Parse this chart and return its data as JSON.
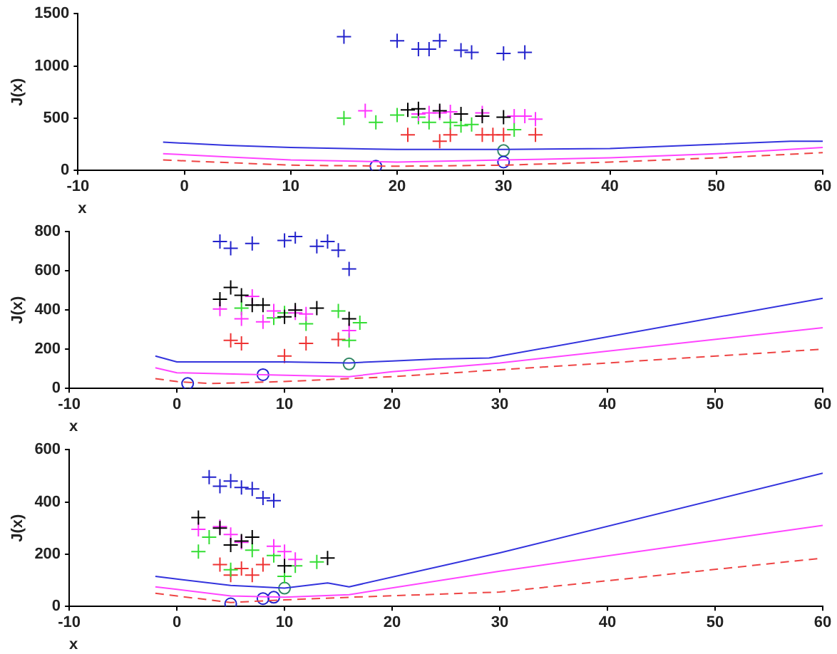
{
  "chart_data": [
    {
      "type": "scatter",
      "xlabel": "x",
      "ylabel": "J(x)",
      "xlim": [
        -10,
        60
      ],
      "xticks": [
        -10,
        0,
        10,
        20,
        30,
        40,
        50,
        60
      ],
      "ylim": [
        0,
        1500
      ],
      "yticks": [
        0,
        500,
        1000,
        1500
      ],
      "series": [
        {
          "type": "line",
          "color": "#3333dd",
          "marker": "none",
          "line_style": "solid",
          "x": [
            -2,
            4,
            10,
            20,
            23,
            30,
            40,
            50,
            57,
            60
          ],
          "values": [
            270,
            240,
            220,
            200,
            200,
            200,
            210,
            250,
            280,
            280
          ]
        },
        {
          "type": "line",
          "color": "#ff44ff",
          "marker": "none",
          "line_style": "solid",
          "x": [
            -2,
            4,
            10,
            20,
            30,
            40,
            50,
            60
          ],
          "values": [
            160,
            130,
            100,
            80,
            100,
            120,
            160,
            220
          ]
        },
        {
          "type": "line",
          "color": "#ee4444",
          "marker": "none",
          "line_style": "dashed",
          "x": [
            -2,
            10,
            20,
            30,
            40,
            50,
            60
          ],
          "values": [
            100,
            50,
            40,
            50,
            80,
            120,
            170
          ]
        },
        {
          "type": "scatter",
          "color": "#2222cc",
          "marker": "cross",
          "x": [
            15,
            20,
            22,
            23,
            24,
            26,
            27,
            30,
            32
          ],
          "values": [
            1280,
            1240,
            1160,
            1160,
            1240,
            1150,
            1130,
            1120,
            1130
          ]
        },
        {
          "type": "scatter",
          "color": "#000000",
          "marker": "cross",
          "x": [
            21,
            22,
            24,
            26,
            28,
            30
          ],
          "values": [
            580,
            590,
            570,
            540,
            520,
            510
          ]
        },
        {
          "type": "scatter",
          "color": "#ff33ff",
          "marker": "cross",
          "x": [
            17,
            22,
            23,
            24,
            25,
            28,
            31,
            32,
            33
          ],
          "values": [
            570,
            540,
            550,
            550,
            560,
            550,
            520,
            520,
            490
          ]
        },
        {
          "type": "scatter",
          "color": "#33dd33",
          "marker": "cross",
          "x": [
            15,
            18,
            20,
            22,
            23,
            25,
            26,
            27,
            31
          ],
          "values": [
            500,
            460,
            530,
            510,
            460,
            460,
            430,
            440,
            390
          ]
        },
        {
          "type": "scatter",
          "color": "#ee3333",
          "marker": "cross",
          "x": [
            21,
            24,
            25,
            28,
            29,
            30,
            33
          ],
          "values": [
            340,
            280,
            340,
            340,
            340,
            340,
            340
          ]
        },
        {
          "type": "scatter",
          "color": "#2222cc",
          "marker": "circle",
          "x": [
            18,
            30
          ],
          "values": [
            40,
            80
          ]
        },
        {
          "type": "scatter",
          "color": "#338866",
          "marker": "circle",
          "x": [
            30
          ],
          "values": [
            190
          ]
        }
      ]
    },
    {
      "type": "scatter",
      "xlabel": "x",
      "ylabel": "J(x)",
      "xlim": [
        -10,
        60
      ],
      "xticks": [
        -10,
        0,
        10,
        20,
        30,
        40,
        50,
        60
      ],
      "ylim": [
        0,
        800
      ],
      "yticks": [
        0,
        200,
        400,
        600,
        800
      ],
      "series": [
        {
          "type": "line",
          "color": "#3333dd",
          "marker": "none",
          "line_style": "solid",
          "x": [
            -2,
            0,
            5,
            10,
            16,
            20,
            24,
            29,
            60
          ],
          "values": [
            165,
            135,
            135,
            135,
            130,
            140,
            150,
            155,
            460
          ]
        },
        {
          "type": "line",
          "color": "#ff44ff",
          "marker": "none",
          "line_style": "solid",
          "x": [
            -2,
            0,
            8,
            16,
            20,
            30,
            60
          ],
          "values": [
            105,
            80,
            70,
            60,
            85,
            130,
            310
          ]
        },
        {
          "type": "line",
          "color": "#ee4444",
          "marker": "none",
          "line_style": "dashed",
          "x": [
            -2,
            0,
            3,
            10,
            20,
            30,
            60
          ],
          "values": [
            50,
            35,
            25,
            35,
            60,
            95,
            200
          ]
        },
        {
          "type": "scatter",
          "color": "#2222cc",
          "marker": "cross",
          "x": [
            4,
            5,
            7,
            10,
            11,
            13,
            14,
            15,
            16
          ],
          "values": [
            750,
            715,
            740,
            755,
            775,
            725,
            750,
            705,
            610
          ]
        },
        {
          "type": "scatter",
          "color": "#000000",
          "marker": "cross",
          "x": [
            4,
            5,
            6,
            7,
            8,
            10,
            11,
            13,
            16
          ],
          "values": [
            455,
            515,
            475,
            425,
            425,
            365,
            400,
            410,
            355
          ]
        },
        {
          "type": "scatter",
          "color": "#ff33ff",
          "marker": "cross",
          "x": [
            4,
            6,
            7,
            8,
            9,
            11,
            12,
            16
          ],
          "values": [
            405,
            355,
            470,
            340,
            395,
            385,
            380,
            295
          ]
        },
        {
          "type": "scatter",
          "color": "#33dd33",
          "marker": "cross",
          "x": [
            6,
            9,
            10,
            12,
            15,
            16,
            17
          ],
          "values": [
            410,
            360,
            385,
            330,
            395,
            245,
            335
          ]
        },
        {
          "type": "scatter",
          "color": "#ee3333",
          "marker": "cross",
          "x": [
            5,
            6,
            10,
            12,
            15
          ],
          "values": [
            245,
            230,
            165,
            230,
            250
          ]
        },
        {
          "type": "scatter",
          "color": "#2222cc",
          "marker": "circle",
          "x": [
            1,
            8
          ],
          "values": [
            25,
            70
          ]
        },
        {
          "type": "scatter",
          "color": "#338866",
          "marker": "circle",
          "x": [
            16
          ],
          "values": [
            125
          ]
        }
      ]
    },
    {
      "type": "scatter",
      "xlabel": "x",
      "ylabel": "J(x)",
      "xlim": [
        -10,
        60
      ],
      "xticks": [
        -10,
        0,
        10,
        20,
        30,
        40,
        50,
        60
      ],
      "ylim": [
        0,
        600
      ],
      "yticks": [
        0,
        200,
        400,
        600
      ],
      "series": [
        {
          "type": "line",
          "color": "#3333dd",
          "marker": "none",
          "line_style": "solid",
          "x": [
            -2,
            0,
            5,
            10,
            14,
            16,
            30,
            60
          ],
          "values": [
            115,
            105,
            80,
            70,
            90,
            75,
            205,
            510
          ]
        },
        {
          "type": "line",
          "color": "#ff44ff",
          "marker": "none",
          "line_style": "solid",
          "x": [
            -2,
            0,
            5,
            10,
            16,
            30,
            60
          ],
          "values": [
            75,
            65,
            40,
            35,
            45,
            135,
            310
          ]
        },
        {
          "type": "line",
          "color": "#ee4444",
          "marker": "none",
          "line_style": "dashed",
          "x": [
            -2,
            0,
            5,
            10,
            16,
            30,
            60
          ],
          "values": [
            50,
            40,
            15,
            25,
            35,
            55,
            185
          ]
        },
        {
          "type": "scatter",
          "color": "#2222cc",
          "marker": "cross",
          "x": [
            3,
            4,
            5,
            6,
            7,
            8,
            9
          ],
          "values": [
            495,
            460,
            480,
            455,
            450,
            415,
            405
          ]
        },
        {
          "type": "scatter",
          "color": "#000000",
          "marker": "cross",
          "x": [
            2,
            4,
            5,
            6,
            7,
            10,
            14
          ],
          "values": [
            340,
            300,
            235,
            250,
            265,
            155,
            185
          ]
        },
        {
          "type": "scatter",
          "color": "#ff33ff",
          "marker": "cross",
          "x": [
            2,
            4,
            5,
            6,
            9,
            10,
            11
          ],
          "values": [
            295,
            305,
            275,
            245,
            230,
            210,
            180
          ]
        },
        {
          "type": "scatter",
          "color": "#33dd33",
          "marker": "cross",
          "x": [
            2,
            3,
            5,
            7,
            9,
            10,
            11,
            13
          ],
          "values": [
            210,
            265,
            140,
            215,
            195,
            115,
            155,
            170
          ]
        },
        {
          "type": "scatter",
          "color": "#ee3333",
          "marker": "cross",
          "x": [
            4,
            5,
            6,
            7,
            8
          ],
          "values": [
            160,
            120,
            145,
            120,
            160
          ]
        },
        {
          "type": "scatter",
          "color": "#2222cc",
          "marker": "circle",
          "x": [
            5,
            8,
            9
          ],
          "values": [
            10,
            30,
            35
          ]
        },
        {
          "type": "scatter",
          "color": "#338866",
          "marker": "circle",
          "x": [
            10
          ],
          "values": [
            70
          ]
        }
      ]
    }
  ]
}
